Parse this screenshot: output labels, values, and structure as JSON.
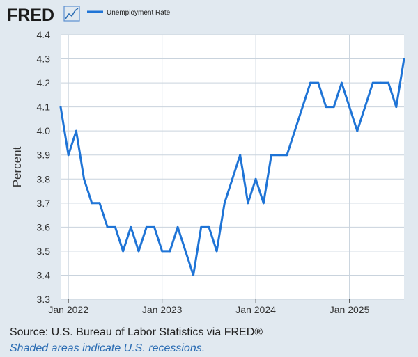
{
  "brand": {
    "logo_text": "FRED"
  },
  "colors": {
    "line": "#1f74d6",
    "plot_bg": "#ffffff",
    "grid": "#c9d3dd",
    "page_bg": "#e1e9f0"
  },
  "chart_data": {
    "type": "line",
    "title": "",
    "xlabel": "",
    "ylabel": "Percent",
    "ylim": [
      3.3,
      4.4
    ],
    "yticks": [
      "3.3",
      "3.4",
      "3.5",
      "3.6",
      "3.7",
      "3.8",
      "3.9",
      "4.0",
      "4.1",
      "4.2",
      "4.3",
      "4.4"
    ],
    "x_ticks": [
      "Jan 2022",
      "Jan 2023",
      "Jan 2024",
      "Jan 2025"
    ],
    "grid": true,
    "legend_position": "top",
    "series": [
      {
        "name": "Unemployment Rate",
        "x": [
          "2021-12",
          "2022-01",
          "2022-02",
          "2022-03",
          "2022-04",
          "2022-05",
          "2022-06",
          "2022-07",
          "2022-08",
          "2022-09",
          "2022-10",
          "2022-11",
          "2022-12",
          "2023-01",
          "2023-02",
          "2023-03",
          "2023-04",
          "2023-05",
          "2023-06",
          "2023-07",
          "2023-08",
          "2023-09",
          "2023-10",
          "2023-11",
          "2023-12",
          "2024-01",
          "2024-02",
          "2024-03",
          "2024-04",
          "2024-05",
          "2024-06",
          "2024-07",
          "2024-08",
          "2024-09",
          "2024-10",
          "2024-11",
          "2024-12",
          "2025-01",
          "2025-02",
          "2025-03",
          "2025-04",
          "2025-05",
          "2025-06",
          "2025-07",
          "2025-08"
        ],
        "values": [
          4.1,
          3.9,
          4.0,
          3.8,
          3.7,
          3.7,
          3.6,
          3.6,
          3.5,
          3.6,
          3.5,
          3.6,
          3.6,
          3.5,
          3.5,
          3.6,
          3.5,
          3.4,
          3.6,
          3.6,
          3.5,
          3.7,
          3.8,
          3.9,
          3.7,
          3.8,
          3.7,
          3.9,
          3.9,
          3.9,
          4.0,
          4.1,
          4.2,
          4.2,
          4.1,
          4.1,
          4.2,
          4.1,
          4.0,
          4.1,
          4.2,
          4.2,
          4.2,
          4.1,
          4.3
        ]
      }
    ]
  },
  "footer": {
    "source": "Source: U.S. Bureau of Labor Statistics via FRED®",
    "note": "Shaded areas indicate U.S. recessions."
  }
}
